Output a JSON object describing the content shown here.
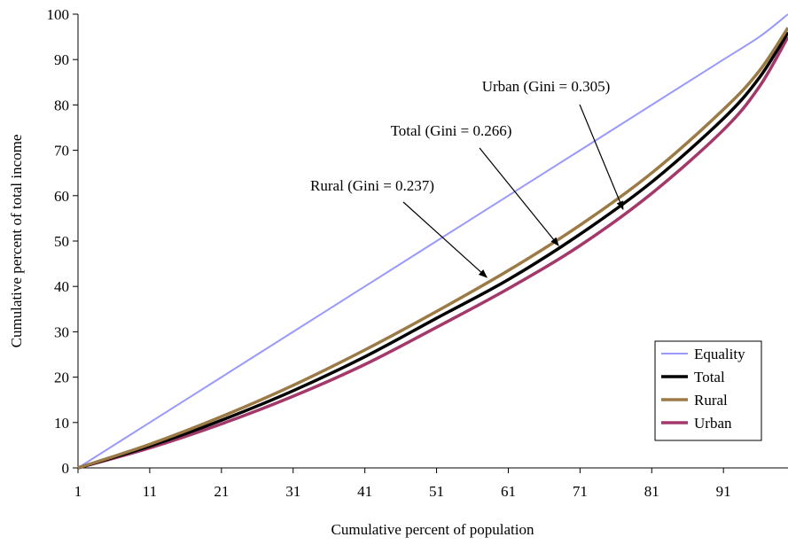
{
  "chart_data": {
    "type": "line",
    "xlabel": "Cumulative percent of population",
    "ylabel": "Cumulative percent of total income",
    "xlim": [
      1,
      100
    ],
    "ylim": [
      0,
      100
    ],
    "x_ticks": [
      "1",
      "11",
      "21",
      "31",
      "41",
      "51",
      "61",
      "71",
      "81",
      "91"
    ],
    "x_tick_values": [
      1,
      11,
      21,
      31,
      41,
      51,
      61,
      71,
      81,
      91
    ],
    "y_ticks": [
      "0",
      "10",
      "20",
      "30",
      "40",
      "50",
      "60",
      "70",
      "80",
      "90",
      "100"
    ],
    "y_tick_values": [
      0,
      10,
      20,
      30,
      40,
      50,
      60,
      70,
      80,
      90,
      100
    ],
    "grid": false,
    "legend_position": "bottom-right",
    "x": [
      1,
      11,
      21,
      31,
      41,
      51,
      61,
      71,
      81,
      91,
      96,
      100
    ],
    "series": [
      {
        "name": "Equality",
        "color": "#9999ff",
        "values": [
          0,
          10,
          20,
          30,
          40,
          50,
          60,
          70,
          80,
          90,
          95,
          100
        ]
      },
      {
        "name": "Total",
        "color": "#000000",
        "values": [
          0,
          4.8,
          10.5,
          17.0,
          24.5,
          33.0,
          41.5,
          51.5,
          63.0,
          77.0,
          86.0,
          96.0
        ]
      },
      {
        "name": "Rural",
        "color": "#9c7a45",
        "values": [
          0,
          5.2,
          11.3,
          18.2,
          26.0,
          34.5,
          43.5,
          53.5,
          65.0,
          79.0,
          87.5,
          97.0
        ]
      },
      {
        "name": "Urban",
        "color": "#a3396a",
        "values": [
          0,
          4.4,
          9.7,
          15.8,
          22.8,
          31.0,
          39.5,
          49.0,
          60.5,
          74.5,
          84.0,
          95.0
        ]
      }
    ],
    "annotations": [
      {
        "text": "Urban (Gini = 0.305)",
        "series": "Urban",
        "x": 77,
        "y": 57
      },
      {
        "text": "Total (Gini = 0.266)",
        "series": "Total",
        "x": 68,
        "y": 49
      },
      {
        "text": "Rural (Gini = 0.237)",
        "series": "Rural",
        "x": 58,
        "y": 42
      }
    ]
  }
}
